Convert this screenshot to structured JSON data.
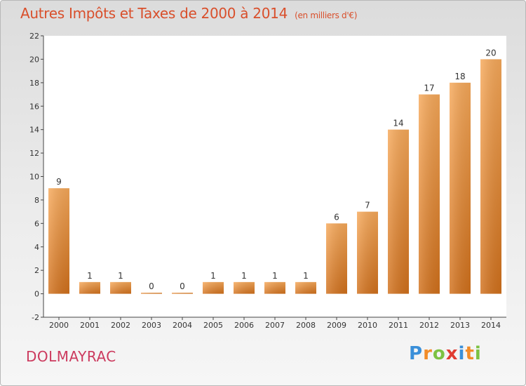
{
  "header": {
    "title": "Autres Impôts et Taxes de 2000 à 2014",
    "unit_note": "(en milliers d'€)"
  },
  "footer": {
    "commune": "DOLMAYRAC",
    "logo_letters": [
      "P",
      "r",
      "o",
      "x",
      "i",
      "t",
      "i"
    ],
    "logo_colors": [
      "#3a8fd9",
      "#f28c28",
      "#7cc242",
      "#e03c31",
      "#3a8fd9",
      "#f28c28",
      "#7cc242"
    ]
  },
  "chart_data": {
    "type": "bar",
    "categories": [
      "2000",
      "2001",
      "2002",
      "2003",
      "2004",
      "2005",
      "2006",
      "2007",
      "2008",
      "2009",
      "2010",
      "2011",
      "2012",
      "2013",
      "2014"
    ],
    "values": [
      9,
      1,
      1,
      0,
      0,
      1,
      1,
      1,
      1,
      6,
      7,
      14,
      17,
      18,
      20
    ],
    "data_labels": [
      "9",
      "1",
      "1",
      "0",
      "0",
      "1",
      "1",
      "1",
      "1",
      "6",
      "7",
      "14",
      "17",
      "18",
      "20"
    ],
    "y_ticks": [
      -2,
      0,
      2,
      4,
      6,
      8,
      10,
      12,
      14,
      16,
      18,
      20,
      22
    ],
    "ylim": [
      -2,
      22
    ],
    "grid": false,
    "bar_color_top": "#f7a95a",
    "bar_color_bottom": "#d2711c",
    "title": "Autres Impôts et Taxes de 2000 à 2014",
    "xlabel": "",
    "ylabel": ""
  }
}
